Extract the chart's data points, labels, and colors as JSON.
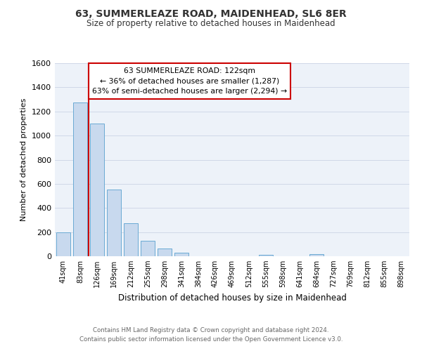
{
  "title": "63, SUMMERLEAZE ROAD, MAIDENHEAD, SL6 8ER",
  "subtitle": "Size of property relative to detached houses in Maidenhead",
  "xlabel": "Distribution of detached houses by size in Maidenhead",
  "ylabel": "Number of detached properties",
  "bar_color": "#c8d9ee",
  "bar_edge_color": "#6aaad4",
  "background_color": "#edf2f9",
  "grid_color": "#d0d8e8",
  "annotation_box_edge": "#cc0000",
  "property_line_color": "#cc0000",
  "categories": [
    "41sqm",
    "83sqm",
    "126sqm",
    "169sqm",
    "212sqm",
    "255sqm",
    "298sqm",
    "341sqm",
    "384sqm",
    "426sqm",
    "469sqm",
    "512sqm",
    "555sqm",
    "598sqm",
    "641sqm",
    "684sqm",
    "727sqm",
    "769sqm",
    "812sqm",
    "855sqm",
    "898sqm"
  ],
  "values": [
    200,
    1275,
    1100,
    555,
    275,
    130,
    65,
    30,
    0,
    0,
    0,
    0,
    10,
    0,
    0,
    20,
    0,
    0,
    0,
    0,
    0
  ],
  "property_bin_index": 2,
  "annotation_title": "63 SUMMERLEAZE ROAD: 122sqm",
  "annotation_line1": "← 36% of detached houses are smaller (1,287)",
  "annotation_line2": "63% of semi-detached houses are larger (2,294) →",
  "ylim": [
    0,
    1600
  ],
  "yticks": [
    0,
    200,
    400,
    600,
    800,
    1000,
    1200,
    1400,
    1600
  ],
  "footer_line1": "Contains HM Land Registry data © Crown copyright and database right 2024.",
  "footer_line2": "Contains public sector information licensed under the Open Government Licence v3.0."
}
